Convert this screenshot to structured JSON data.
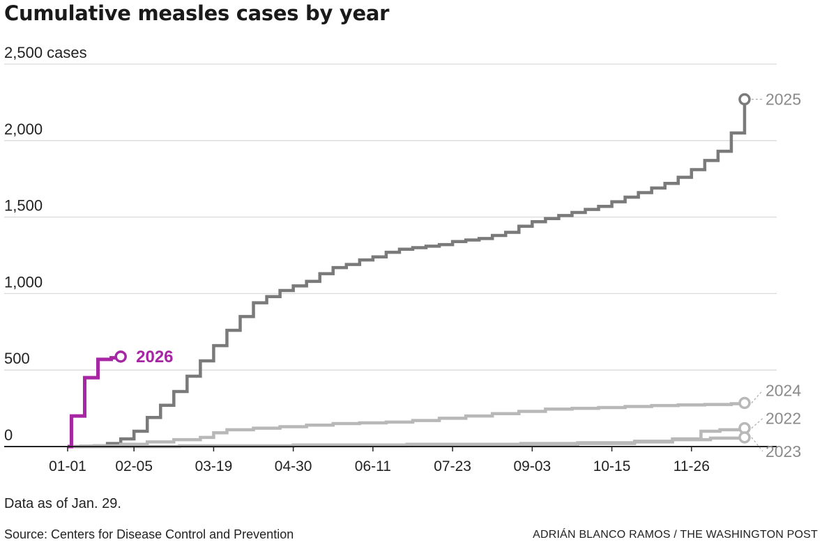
{
  "title": "Cumulative measles cases by year",
  "note": "Data as of Jan. 29.",
  "source": "Source: Centers for Disease Control and Prevention",
  "credit": "ADRIÁN BLANCO RAMOS / THE WASHINGTON POST",
  "colors": {
    "highlight": "#a626a4",
    "y2025": "#7a7a7a",
    "y2024": "#b8b8b8",
    "y2022": "#b8b8b8",
    "y2023": "#b8b8b8",
    "grid": "#d9d9d9",
    "axis": "#222222"
  },
  "chart_data": {
    "type": "line",
    "title": "Cumulative measles cases by year",
    "xlabel": "",
    "ylabel": "cases",
    "xlim": [
      1,
      365
    ],
    "ylim": [
      0,
      2500
    ],
    "y_ticks": [
      {
        "value": 0,
        "label": "0"
      },
      {
        "value": 500,
        "label": "500"
      },
      {
        "value": 1000,
        "label": "1,000"
      },
      {
        "value": 1500,
        "label": "1,500"
      },
      {
        "value": 2000,
        "label": "2,000"
      },
      {
        "value": 2500,
        "label": "2,500 cases"
      }
    ],
    "x_ticks": [
      {
        "value": 1,
        "label": "01-01"
      },
      {
        "value": 36,
        "label": "02-05"
      },
      {
        "value": 78,
        "label": "03-19"
      },
      {
        "value": 120,
        "label": "04-30"
      },
      {
        "value": 162,
        "label": "06-11"
      },
      {
        "value": 204,
        "label": "07-23"
      },
      {
        "value": 246,
        "label": "09-03"
      },
      {
        "value": 288,
        "label": "10-15"
      },
      {
        "value": 330,
        "label": "11-26"
      }
    ],
    "series": [
      {
        "name": "2025",
        "label": "2025",
        "color": "#7a7a7a",
        "highlight": false,
        "x": [
          1,
          8,
          15,
          22,
          29,
          36,
          43,
          50,
          57,
          64,
          71,
          78,
          85,
          92,
          99,
          106,
          113,
          120,
          127,
          134,
          141,
          148,
          155,
          162,
          169,
          176,
          183,
          190,
          197,
          204,
          211,
          218,
          225,
          232,
          239,
          246,
          253,
          260,
          267,
          274,
          281,
          288,
          295,
          302,
          309,
          316,
          323,
          330,
          337,
          344,
          351,
          358
        ],
        "y": [
          0,
          2,
          5,
          20,
          50,
          100,
          190,
          270,
          360,
          460,
          560,
          660,
          760,
          850,
          940,
          980,
          1020,
          1050,
          1080,
          1130,
          1170,
          1190,
          1220,
          1240,
          1270,
          1290,
          1300,
          1310,
          1320,
          1340,
          1350,
          1360,
          1380,
          1400,
          1440,
          1470,
          1490,
          1510,
          1530,
          1550,
          1570,
          1600,
          1630,
          1660,
          1690,
          1720,
          1760,
          1810,
          1870,
          1930,
          2050,
          2270
        ]
      },
      {
        "name": "2024",
        "label": "2024",
        "color": "#b8b8b8",
        "highlight": false,
        "x": [
          1,
          15,
          29,
          43,
          57,
          71,
          78,
          85,
          99,
          113,
          127,
          141,
          155,
          169,
          183,
          197,
          211,
          225,
          239,
          253,
          267,
          281,
          295,
          309,
          323,
          337,
          351,
          358
        ],
        "y": [
          0,
          5,
          15,
          30,
          45,
          60,
          90,
          110,
          120,
          130,
          140,
          150,
          155,
          160,
          170,
          185,
          200,
          215,
          230,
          245,
          250,
          255,
          262,
          268,
          272,
          275,
          280,
          285
        ]
      },
      {
        "name": "2022",
        "label": "2022",
        "color": "#b8b8b8",
        "highlight": false,
        "x": [
          1,
          60,
          120,
          180,
          240,
          270,
          300,
          320,
          335,
          345,
          358
        ],
        "y": [
          0,
          2,
          5,
          8,
          12,
          20,
          30,
          50,
          100,
          110,
          120
        ]
      },
      {
        "name": "2023",
        "label": "2023",
        "color": "#b8b8b8",
        "highlight": false,
        "x": [
          1,
          60,
          120,
          180,
          240,
          270,
          300,
          320,
          340,
          358
        ],
        "y": [
          0,
          5,
          10,
          15,
          20,
          25,
          35,
          45,
          55,
          60
        ]
      },
      {
        "name": "2026",
        "label": "2026",
        "color": "#a626a4",
        "highlight": true,
        "x": [
          1,
          3,
          10,
          17,
          24,
          29
        ],
        "y": [
          0,
          200,
          450,
          570,
          580,
          588
        ]
      }
    ]
  }
}
